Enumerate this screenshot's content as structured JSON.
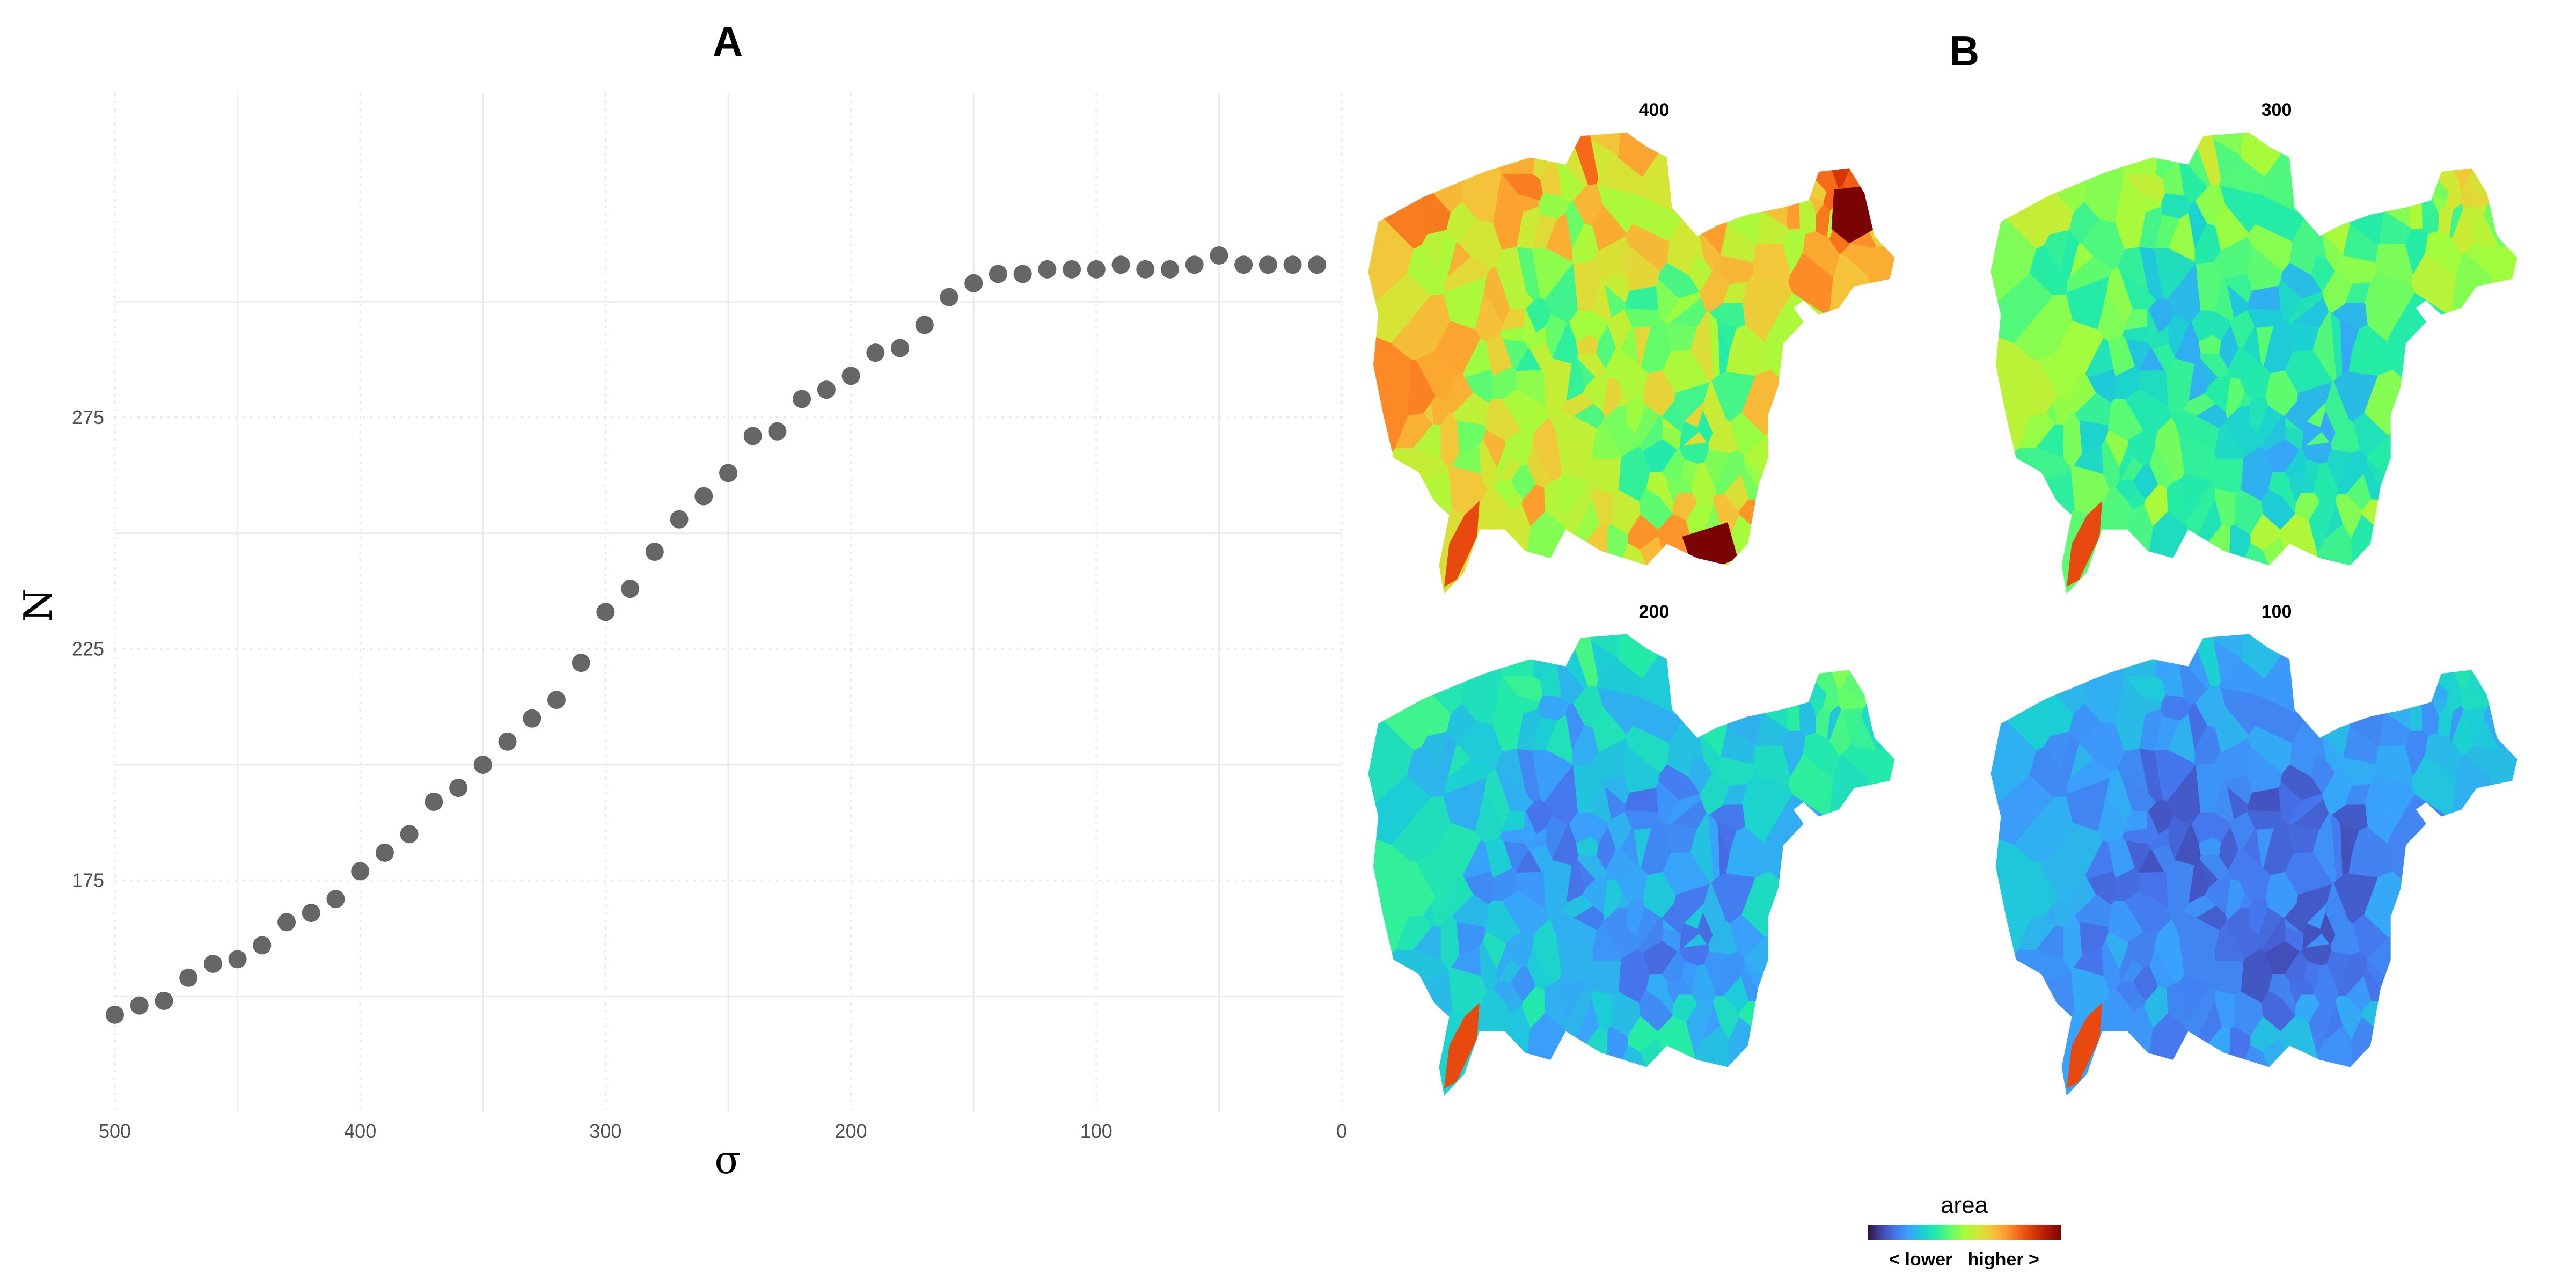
{
  "panel_a": {
    "letter": "A"
  },
  "panel_b": {
    "letter": "B"
  },
  "chart_data": [
    {
      "type": "scatter",
      "title": "",
      "xlabel": "σ",
      "ylabel": "N",
      "xlim": [
        500,
        0
      ],
      "x_reversed": true,
      "ylim": [
        125,
        345
      ],
      "x_ticks": [
        500,
        400,
        300,
        200,
        100,
        0
      ],
      "y_ticks": [
        175,
        225,
        275
      ],
      "grid": true,
      "point_color": "#666666",
      "series": [
        {
          "x": [
            500,
            490,
            480,
            470,
            460,
            450,
            440,
            430,
            420,
            410,
            400,
            390,
            380,
            370,
            360,
            350,
            340,
            330,
            320,
            310,
            300,
            290,
            280,
            270,
            260,
            250,
            240,
            230,
            220,
            210,
            200,
            190,
            180,
            170,
            160,
            150,
            140,
            130,
            120,
            110,
            100,
            90,
            80,
            70,
            60,
            50,
            40,
            30,
            20,
            10
          ],
          "y": [
            146,
            148,
            149,
            154,
            157,
            158,
            161,
            166,
            168,
            171,
            177,
            181,
            185,
            192,
            195,
            200,
            205,
            210,
            214,
            222,
            233,
            238,
            246,
            253,
            258,
            263,
            271,
            272,
            279,
            281,
            284,
            289,
            290,
            295,
            301,
            304,
            306,
            306,
            307,
            307,
            307,
            308,
            307,
            307,
            308,
            310,
            308,
            308,
            308,
            308
          ]
        }
      ]
    },
    {
      "type": "heatmap",
      "subtype": "voronoi-choropleth",
      "panels": [
        "400",
        "300",
        "200",
        "100"
      ],
      "fill_variable": "area",
      "legend": {
        "title": "area",
        "caption": "< lower   higher >",
        "placement": "bottom",
        "colors": [
          "#30123b",
          "#4145ab",
          "#4675ed",
          "#39a2fc",
          "#1bcfd4",
          "#24eca6",
          "#61fc6c",
          "#a4fc3b",
          "#d1e834",
          "#f3c63a",
          "#fe9b2d",
          "#f36315",
          "#d93806",
          "#b11901",
          "#7a0403"
        ]
      }
    }
  ]
}
